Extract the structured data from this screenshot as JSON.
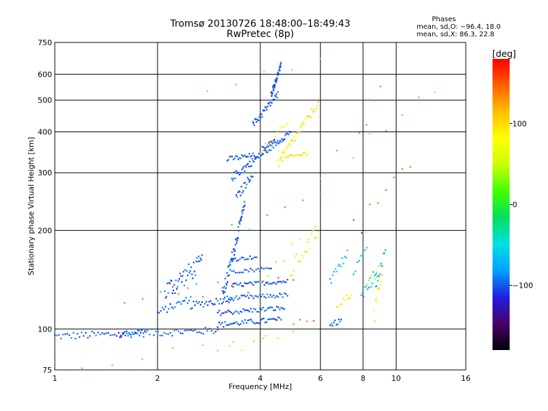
{
  "chart_data": {
    "type": "scatter",
    "title": "Tromsø 20130726 18:48:00–18:49:43",
    "subtitle": "RwPretec (8p)",
    "xlabel": "Frequency [MHz]",
    "ylabel": "Stationary phase Virtual Height [km]",
    "x_scale": "log",
    "y_scale": "log",
    "xlim": [
      1,
      16
    ],
    "ylim": [
      75,
      750
    ],
    "x_ticks": [
      1,
      2,
      4,
      6,
      8,
      10,
      16
    ],
    "y_ticks": [
      75,
      100,
      200,
      300,
      400,
      500,
      600,
      750
    ],
    "grid": true,
    "phase_info": {
      "heading": "Phases",
      "line_o": "mean, sd,O: −96.4, 18.0",
      "line_x": "mean, sd,X:  86.3, 22.8"
    },
    "colorbar": {
      "label": "[deg]",
      "range": [
        -180,
        180
      ],
      "ticks": [
        {
          "value": 100,
          "label": "100"
        },
        {
          "value": 0,
          "label": "0"
        },
        {
          "value": -100,
          "label": "−100"
        }
      ],
      "colors": [
        "#000000",
        "#4a006a",
        "#2020e0",
        "#00a0ff",
        "#00e0e0",
        "#00e060",
        "#40ff00",
        "#c8ff00",
        "#ffff00",
        "#ffc000",
        "#ff6000",
        "#ff0000"
      ]
    },
    "series": [
      {
        "phase": -100,
        "traces": [
          {
            "x": [
              1.0,
              3.0
            ],
            "y": [
              95,
              99
            ],
            "n": 80,
            "jitter": 2.5
          },
          {
            "x": [
              1.55,
              1.85
            ],
            "y": [
              96,
              99
            ],
            "n": 20,
            "jitter": 2
          },
          {
            "x": [
              2.0,
              2.5
            ],
            "y": [
              112,
              124
            ],
            "n": 22,
            "jitter": 3
          },
          {
            "x": [
              2.1,
              2.7
            ],
            "y": [
              130,
              160
            ],
            "n": 45,
            "jitter": 10
          },
          {
            "x": [
              2.5,
              3.3
            ],
            "y": [
              118,
              124
            ],
            "n": 30,
            "jitter": 3
          },
          {
            "x": [
              3.0,
              4.6
            ],
            "y": [
              103,
              107
            ],
            "n": 45,
            "jitter": 2
          },
          {
            "x": [
              3.0,
              4.7
            ],
            "y": [
              112,
              116
            ],
            "n": 45,
            "jitter": 2
          },
          {
            "x": [
              3.2,
              4.8
            ],
            "y": [
              124,
              127
            ],
            "n": 40,
            "jitter": 2
          },
          {
            "x": [
              3.3,
              4.8
            ],
            "y": [
              136,
              140
            ],
            "n": 40,
            "jitter": 2
          },
          {
            "x": [
              3.3,
              4.3
            ],
            "y": [
              150,
              153
            ],
            "n": 22,
            "jitter": 2
          },
          {
            "x": [
              3.3,
              3.9
            ],
            "y": [
              163,
              166
            ],
            "n": 16,
            "jitter": 2
          },
          {
            "x": [
              3.1,
              3.6
            ],
            "y": [
              125,
              240
            ],
            "n": 60,
            "jitter": 8
          },
          {
            "x": [
              3.3,
              4.9
            ],
            "y": [
              290,
              400
            ],
            "n": 70,
            "jitter": 8
          },
          {
            "x": [
              3.2,
              3.9
            ],
            "y": [
              330,
              340
            ],
            "n": 25,
            "jitter": 6
          },
          {
            "x": [
              3.4,
              3.8
            ],
            "y": [
              250,
              300
            ],
            "n": 20,
            "jitter": 8
          },
          {
            "x": [
              3.8,
              4.5
            ],
            "y": [
              420,
              520
            ],
            "n": 35,
            "jitter": 12
          },
          {
            "x": [
              4.3,
              4.6
            ],
            "y": [
              520,
              640
            ],
            "n": 40,
            "jitter": 12
          },
          {
            "x": [
              4.05,
              4.4
            ],
            "y": [
              355,
              380
            ],
            "n": 12,
            "jitter": 6
          },
          {
            "x": [
              6.4,
              6.9
            ],
            "y": [
              103,
              106
            ],
            "n": 10,
            "jitter": 2
          }
        ]
      },
      {
        "phase": 95,
        "traces": [
          {
            "x": [
              4.5,
              5.9
            ],
            "y": [
              320,
              490
            ],
            "n": 40,
            "jitter": 12
          },
          {
            "x": [
              4.6,
              5.5
            ],
            "y": [
              330,
              345
            ],
            "n": 20,
            "jitter": 6
          },
          {
            "x": [
              4.0,
              4.8
            ],
            "y": [
              350,
              420
            ],
            "n": 12,
            "jitter": 15
          },
          {
            "x": [
              4.9,
              5.9
            ],
            "y": [
              150,
              200
            ],
            "n": 18,
            "jitter": 10
          },
          {
            "x": [
              6.7,
              7.4
            ],
            "y": [
              118,
              128
            ],
            "n": 10,
            "jitter": 3
          },
          {
            "x": [
              8.6,
              9.1
            ],
            "y": [
              110,
              150
            ],
            "n": 12,
            "jitter": 8
          }
        ]
      },
      {
        "phase": -70,
        "traces": [
          {
            "x": [
              6.4,
              7.2
            ],
            "y": [
              140,
              170
            ],
            "n": 14,
            "jitter": 6
          },
          {
            "x": [
              7.9,
              8.8
            ],
            "y": [
              125,
              150
            ],
            "n": 14,
            "jitter": 6
          },
          {
            "x": [
              7.5,
              8.2
            ],
            "y": [
              150,
              175
            ],
            "n": 8,
            "jitter": 5
          },
          {
            "x": [
              8.7,
              9.3
            ],
            "y": [
              135,
              175
            ],
            "n": 10,
            "jitter": 6
          }
        ]
      },
      {
        "phase": 40,
        "traces": [
          {
            "x": [
              4.0,
              5.8
            ],
            "y": [
              150,
              200
            ],
            "n": 8,
            "jitter": 12
          },
          {
            "x": [
              8.2,
              9.0
            ],
            "y": [
              130,
              160
            ],
            "n": 8,
            "jitter": 8
          },
          {
            "x": [
              3.0,
              4.5
            ],
            "y": [
              84,
              95
            ],
            "n": 6,
            "jitter": 3
          }
        ]
      },
      {
        "phase": 150,
        "traces": [
          {
            "x": [
              2.0,
              5.0
            ],
            "y": [
              130,
              140
            ],
            "n": 10,
            "jitter": 10
          },
          {
            "x": [
              5.0,
              6.0
            ],
            "y": [
              104,
              108
            ],
            "n": 5,
            "jitter": 2
          },
          {
            "x": [
              7.5,
              11.0
            ],
            "y": [
              200,
              330
            ],
            "n": 8,
            "jitter": 20
          }
        ]
      },
      {
        "phase": 120,
        "traces": [
          {
            "x": [
              1.2,
              5.0
            ],
            "y": [
              76,
              100
            ],
            "n": 8,
            "jitter": 3
          },
          {
            "x": [
              2.8,
              6.0
            ],
            "y": [
              550,
              670
            ],
            "n": 5,
            "jitter": 20
          },
          {
            "x": [
              6.0,
              13.0
            ],
            "y": [
              300,
              520
            ],
            "n": 8,
            "jitter": 30
          }
        ]
      },
      {
        "phase": -20,
        "traces": [
          {
            "x": [
              3.3,
              6.0
            ],
            "y": [
              200,
              260
            ],
            "n": 6,
            "jitter": 10
          },
          {
            "x": [
              7.8,
              9.0
            ],
            "y": [
              380,
              560
            ],
            "n": 4,
            "jitter": 20
          },
          {
            "x": [
              1.6,
              2.6
            ],
            "y": [
              120,
              135
            ],
            "n": 5,
            "jitter": 4
          }
        ]
      }
    ]
  }
}
